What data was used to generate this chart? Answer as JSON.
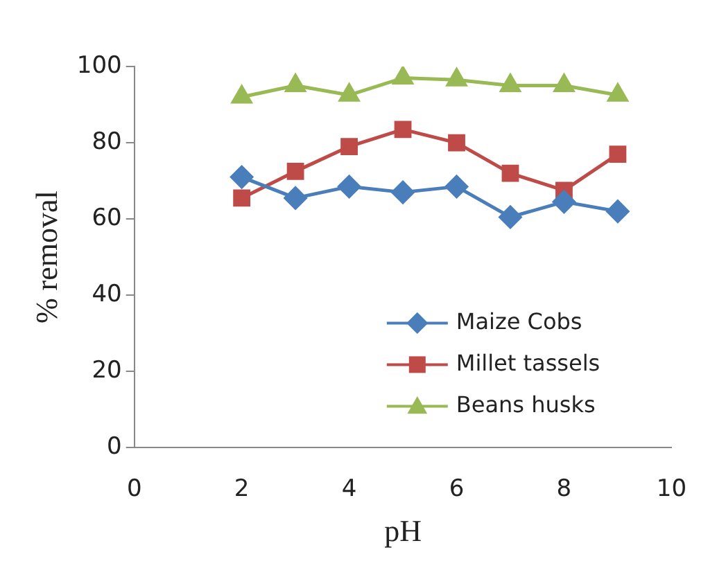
{
  "chart_data": {
    "type": "line",
    "xlabel": "pH",
    "ylabel": "% removal",
    "x": [
      2,
      3,
      4,
      5,
      6,
      7,
      8,
      9
    ],
    "series": [
      {
        "name": "Maize Cobs",
        "color": "#4a7ebb",
        "marker": "diamond",
        "values": [
          71,
          65.5,
          68.5,
          67,
          68.5,
          60.5,
          64.5,
          62
        ]
      },
      {
        "name": "Millet tassels",
        "color": "#be4b48",
        "marker": "square",
        "values": [
          65.5,
          72.5,
          79,
          83.5,
          80,
          72,
          67.5,
          77
        ]
      },
      {
        "name": "Beans husks",
        "color": "#98b954",
        "marker": "triangle",
        "values": [
          92,
          95,
          92.5,
          97,
          96.5,
          95,
          95,
          92.5
        ]
      }
    ],
    "xlim": [
      0,
      10
    ],
    "xticks": [
      0,
      2,
      4,
      6,
      8,
      10
    ],
    "ylim": [
      0,
      100
    ],
    "yticks": [
      0,
      20,
      40,
      60,
      80,
      100
    ],
    "grid": false,
    "legend": "bottom right",
    "line_style": "solid"
  }
}
